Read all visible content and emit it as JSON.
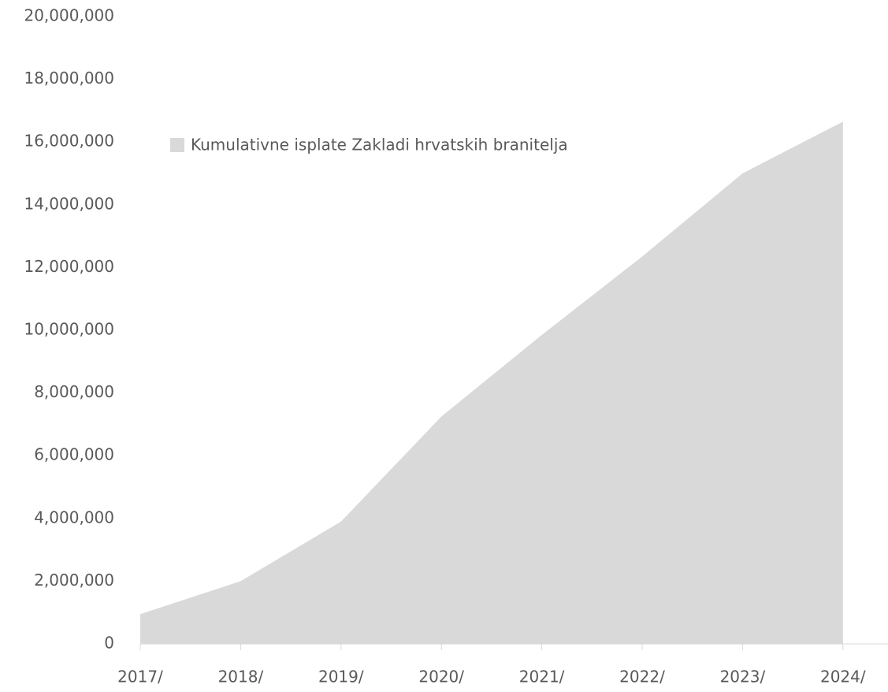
{
  "chart_data": {
    "type": "area",
    "categories": [
      "2017/",
      "2018/",
      "2019/",
      "2020/",
      "2021/",
      "2022/",
      "2023/",
      "2024/"
    ],
    "series": [
      {
        "name": "Kumulativne isplate Zakladi hrvatskih branitelja",
        "color": "#d9d9d9",
        "values": [
          950000,
          2000000,
          3900000,
          7250000,
          9850000,
          12350000,
          15000000,
          16650000
        ]
      }
    ],
    "ylim": [
      0,
      20000000
    ],
    "yticks": [
      0,
      {
        "value": 2000000,
        "label": "2,000,000"
      },
      {
        "value": 4000000,
        "label": "4,000,000"
      },
      {
        "value": 6000000,
        "label": "6,000,000"
      },
      {
        "value": 8000000,
        "label": "8,000,000"
      },
      {
        "value": 10000000,
        "label": "10,000,000"
      },
      {
        "value": 12000000,
        "label": "12,000,000"
      },
      {
        "value": 14000000,
        "label": "14,000,000"
      },
      {
        "value": 16000000,
        "label": "16,000,000"
      },
      {
        "value": 18000000,
        "label": "18,000,000"
      },
      {
        "value": 20000000,
        "label": "20,000,000"
      }
    ],
    "legend": "top-left"
  }
}
